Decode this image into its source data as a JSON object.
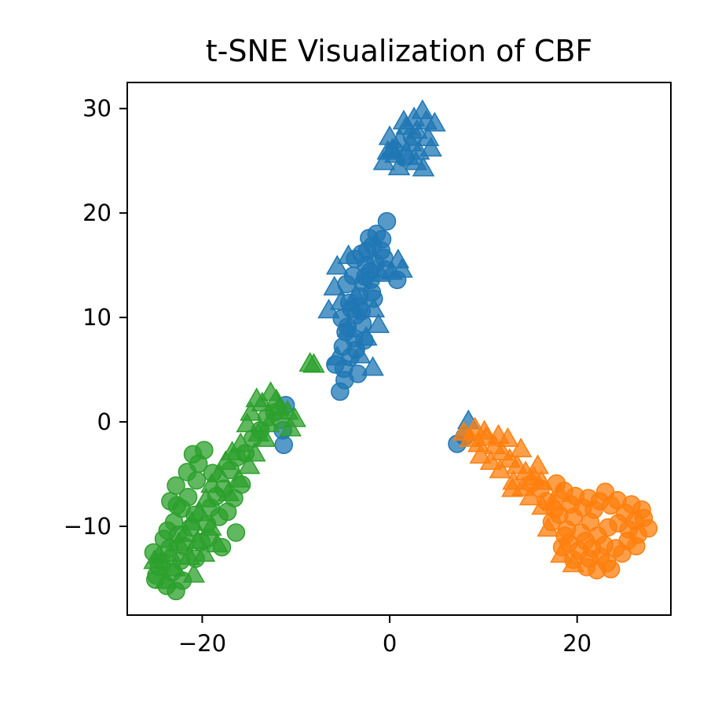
{
  "chart_data": {
    "type": "scatter",
    "title": "t-SNE Visualization of CBF",
    "xlabel": "",
    "ylabel": "",
    "xlim": [
      -28,
      30
    ],
    "ylim": [
      -18.5,
      32.5
    ],
    "xticks": [
      -20,
      0,
      20
    ],
    "yticks": [
      -10,
      0,
      10,
      20,
      30
    ],
    "xtick_labels": [
      "−20",
      "0",
      "20"
    ],
    "ytick_labels": [
      "−10",
      "0",
      "10",
      "20",
      "30"
    ],
    "grid": false,
    "legend": "none",
    "marker_alpha": 0.75,
    "series": [
      {
        "color": "#1f77b4",
        "markers": "circle",
        "points": [
          [
            -5.3,
            2.9
          ],
          [
            -4.8,
            4.0
          ],
          [
            -5.8,
            5.5
          ],
          [
            -4.2,
            6.2
          ],
          [
            -5.0,
            7.2
          ],
          [
            -3.8,
            8.0
          ],
          [
            -4.5,
            9.1
          ],
          [
            -3.6,
            10.2
          ],
          [
            -4.3,
            11.4
          ],
          [
            -3.2,
            12.0
          ],
          [
            -2.8,
            13.3
          ],
          [
            -3.9,
            14.0
          ],
          [
            -2.5,
            15.0
          ],
          [
            -3.0,
            16.1
          ],
          [
            -1.8,
            16.9
          ],
          [
            -2.2,
            17.6
          ],
          [
            -1.4,
            18.0
          ],
          [
            -0.3,
            19.2
          ],
          [
            -0.9,
            16.4
          ],
          [
            -1.5,
            15.2
          ],
          [
            -2.6,
            13.9
          ],
          [
            -0.5,
            14.6
          ],
          [
            0.8,
            13.6
          ],
          [
            -1.9,
            12.4
          ],
          [
            -3.3,
            11.1
          ],
          [
            -4.1,
            10.8
          ],
          [
            -2.9,
            9.4
          ],
          [
            -4.7,
            8.6
          ],
          [
            -3.6,
            6.9
          ],
          [
            -4.9,
            5.1
          ],
          [
            -3.4,
            4.6
          ],
          [
            -2.7,
            7.8
          ],
          [
            -1.7,
            11.8
          ],
          [
            -2.1,
            14.4
          ],
          [
            -0.8,
            17.5
          ],
          [
            -3.7,
            15.6
          ],
          [
            -2.4,
            16.4
          ],
          [
            -4.6,
            13.2
          ],
          [
            -3.0,
            10.6
          ],
          [
            -5.1,
            9.9
          ],
          [
            -2.0,
            13.6
          ],
          [
            -0.6,
            15.7
          ],
          [
            -11.1,
            1.6
          ],
          [
            -11.3,
            -2.2
          ],
          [
            -11.4,
            -0.8
          ],
          [
            7.2,
            -2.1
          ],
          [
            8.0,
            -1.4
          ],
          [
            0.5,
            26.0
          ],
          [
            1.6,
            25.3
          ],
          [
            2.4,
            27.3
          ]
        ]
      },
      {
        "color": "#1f77b4",
        "markers": "triangle",
        "points": [
          [
            -5.6,
            14.9
          ],
          [
            -5.9,
            12.9
          ],
          [
            -6.5,
            10.7
          ],
          [
            -5.2,
            11.5
          ],
          [
            -4.4,
            15.9
          ],
          [
            -1.0,
            14.2
          ],
          [
            0.2,
            14.4
          ],
          [
            1.3,
            14.6
          ],
          [
            -1.7,
            10.8
          ],
          [
            -1.2,
            9.3
          ],
          [
            -2.5,
            8.1
          ],
          [
            -5.6,
            6.2
          ],
          [
            -3.2,
            6.4
          ],
          [
            -1.8,
            5.2
          ],
          [
            -4.4,
            8.9
          ],
          [
            -3.6,
            12.1
          ],
          [
            0.9,
            15.5
          ],
          [
            -0.6,
            24.9
          ],
          [
            0.3,
            26.1
          ],
          [
            1.1,
            27.0
          ],
          [
            1.8,
            28.3
          ],
          [
            2.6,
            29.1
          ],
          [
            3.5,
            29.8
          ],
          [
            2.9,
            27.9
          ],
          [
            3.9,
            28.8
          ],
          [
            4.4,
            26.2
          ],
          [
            3.6,
            24.3
          ],
          [
            2.0,
            25.4
          ],
          [
            1.0,
            24.4
          ],
          [
            0.6,
            25.6
          ],
          [
            2.3,
            26.7
          ],
          [
            4.1,
            27.2
          ],
          [
            3.1,
            25.9
          ],
          [
            1.5,
            28.8
          ],
          [
            0.0,
            27.3
          ],
          [
            4.8,
            28.6
          ],
          [
            2.8,
            24.9
          ],
          [
            -0.2,
            25.9
          ],
          [
            8.4,
            0.1
          ]
        ]
      },
      {
        "color": "#ff7f0e",
        "markers": "circle",
        "points": [
          [
            17.8,
            -5.9
          ],
          [
            18.6,
            -6.6
          ],
          [
            19.8,
            -7.1
          ],
          [
            21.2,
            -7.3
          ],
          [
            22.4,
            -7.6
          ],
          [
            23.6,
            -8.0
          ],
          [
            24.3,
            -7.5
          ],
          [
            25.1,
            -8.7
          ],
          [
            26.2,
            -9.5
          ],
          [
            27.1,
            -9.2
          ],
          [
            27.6,
            -10.2
          ],
          [
            26.5,
            -10.8
          ],
          [
            25.4,
            -11.4
          ],
          [
            24.1,
            -12.1
          ],
          [
            23.2,
            -13.5
          ],
          [
            23.6,
            -14.1
          ],
          [
            22.5,
            -12.9
          ],
          [
            21.3,
            -13.1
          ],
          [
            20.2,
            -12.3
          ],
          [
            19.1,
            -11.6
          ],
          [
            18.4,
            -12.0
          ],
          [
            18.9,
            -10.3
          ],
          [
            19.6,
            -9.1
          ],
          [
            20.4,
            -10.6
          ],
          [
            21.4,
            -9.6
          ],
          [
            22.2,
            -10.9
          ],
          [
            23.3,
            -10.1
          ],
          [
            24.4,
            -9.7
          ],
          [
            25.5,
            -10.3
          ],
          [
            26.3,
            -11.9
          ],
          [
            24.8,
            -12.6
          ],
          [
            22.9,
            -11.8
          ],
          [
            21.8,
            -8.4
          ],
          [
            20.6,
            -8.2
          ],
          [
            19.3,
            -7.9
          ],
          [
            18.1,
            -8.9
          ],
          [
            17.3,
            -9.6
          ],
          [
            18.7,
            -10.9
          ],
          [
            20.9,
            -11.4
          ],
          [
            22.1,
            -14.2
          ],
          [
            21.0,
            -13.9
          ],
          [
            19.6,
            -13.2
          ],
          [
            23.0,
            -6.7
          ],
          [
            25.8,
            -7.9
          ],
          [
            16.1,
            -6.4
          ],
          [
            15.1,
            -5.9
          ],
          [
            16.7,
            -7.6
          ],
          [
            17.6,
            -8.4
          ],
          [
            26.9,
            -8.4
          ],
          [
            21.6,
            -12.1
          ]
        ]
      },
      {
        "color": "#ff7f0e",
        "markers": "triangle",
        "points": [
          [
            7.9,
            -1.0
          ],
          [
            8.6,
            -1.6
          ],
          [
            9.5,
            -2.1
          ],
          [
            10.3,
            -1.5
          ],
          [
            11.2,
            -2.3
          ],
          [
            12.0,
            -2.9
          ],
          [
            12.8,
            -3.6
          ],
          [
            13.6,
            -4.2
          ],
          [
            14.5,
            -4.8
          ],
          [
            15.4,
            -5.3
          ],
          [
            16.2,
            -5.7
          ],
          [
            11.8,
            -4.6
          ],
          [
            10.8,
            -3.8
          ],
          [
            9.7,
            -3.2
          ],
          [
            13.2,
            -5.7
          ],
          [
            14.2,
            -6.3
          ],
          [
            15.0,
            -7.2
          ],
          [
            16.3,
            -8.1
          ],
          [
            17.4,
            -7.7
          ],
          [
            18.2,
            -6.9
          ],
          [
            12.6,
            -1.6
          ],
          [
            14.0,
            -2.6
          ],
          [
            10.1,
            -0.9
          ],
          [
            11.6,
            -1.3
          ],
          [
            15.8,
            -4.2
          ],
          [
            9.1,
            -0.6
          ],
          [
            13.1,
            -6.4
          ],
          [
            16.9,
            -10.2
          ],
          [
            18.3,
            -12.7
          ],
          [
            19.6,
            -13.6
          ]
        ]
      },
      {
        "color": "#2ca02c",
        "markers": "circle",
        "points": [
          [
            -25.2,
            -12.5
          ],
          [
            -24.6,
            -13.9
          ],
          [
            -25.0,
            -15.1
          ],
          [
            -23.8,
            -15.7
          ],
          [
            -23.2,
            -14.4
          ],
          [
            -22.8,
            -16.2
          ],
          [
            -22.3,
            -13.3
          ],
          [
            -23.5,
            -12.1
          ],
          [
            -24.1,
            -11.2
          ],
          [
            -22.6,
            -10.8
          ],
          [
            -23.0,
            -9.6
          ],
          [
            -22.2,
            -8.3
          ],
          [
            -23.4,
            -7.6
          ],
          [
            -22.8,
            -6.1
          ],
          [
            -21.5,
            -7.2
          ],
          [
            -20.8,
            -8.9
          ],
          [
            -21.2,
            -10.1
          ],
          [
            -20.1,
            -11.5
          ],
          [
            -19.5,
            -9.8
          ],
          [
            -19.1,
            -8.2
          ],
          [
            -18.5,
            -7.1
          ],
          [
            -17.7,
            -6.4
          ],
          [
            -17.0,
            -4.6
          ],
          [
            -16.3,
            -3.4
          ],
          [
            -15.4,
            -3.0
          ],
          [
            -14.6,
            -1.6
          ],
          [
            -13.8,
            -0.8
          ],
          [
            -13.1,
            0.4
          ],
          [
            -12.3,
            0.9
          ],
          [
            -11.7,
            0.2
          ],
          [
            -21.0,
            -3.1
          ],
          [
            -20.4,
            -4.0
          ],
          [
            -19.8,
            -2.7
          ],
          [
            -18.9,
            -4.9
          ],
          [
            -20.6,
            -5.6
          ],
          [
            -21.6,
            -4.8
          ],
          [
            -22.7,
            -8.0
          ],
          [
            -24.3,
            -13.4
          ],
          [
            -23.7,
            -10.4
          ],
          [
            -21.9,
            -11.9
          ],
          [
            -20.7,
            -13.1
          ],
          [
            -18.2,
            -9.1
          ],
          [
            -17.3,
            -8.6
          ],
          [
            -16.6,
            -7.3
          ],
          [
            -15.8,
            -6.0
          ],
          [
            -16.4,
            -10.6
          ],
          [
            -17.9,
            -12.0
          ],
          [
            -19.3,
            -11.1
          ],
          [
            -22.1,
            -15.2
          ],
          [
            -24.9,
            -14.7
          ]
        ]
      },
      {
        "color": "#2ca02c",
        "markers": "triangle",
        "points": [
          [
            -8.5,
            5.6
          ],
          [
            -8.1,
            5.5
          ],
          [
            -10.1,
            0.3
          ],
          [
            -10.9,
            1.0
          ],
          [
            -12.1,
            2.1
          ],
          [
            -12.7,
            2.8
          ],
          [
            -13.6,
            1.8
          ],
          [
            -14.2,
            2.2
          ],
          [
            -14.8,
            0.9
          ],
          [
            -15.2,
            -0.2
          ],
          [
            -14.0,
            -1.1
          ],
          [
            -12.9,
            -0.2
          ],
          [
            -11.8,
            1.4
          ],
          [
            -10.6,
            -0.6
          ],
          [
            -15.9,
            -2.1
          ],
          [
            -16.8,
            -2.9
          ],
          [
            -17.5,
            -3.8
          ],
          [
            -18.2,
            -5.0
          ],
          [
            -19.0,
            -6.0
          ],
          [
            -19.6,
            -7.4
          ],
          [
            -20.3,
            -8.7
          ],
          [
            -21.1,
            -9.6
          ],
          [
            -21.8,
            -10.7
          ],
          [
            -22.5,
            -11.6
          ],
          [
            -23.4,
            -12.6
          ],
          [
            -24.6,
            -12.8
          ],
          [
            -20.5,
            -11.4
          ],
          [
            -19.1,
            -10.1
          ],
          [
            -18.4,
            -11.7
          ],
          [
            -21.4,
            -12.9
          ],
          [
            -22.9,
            -14.0
          ],
          [
            -15.0,
            -4.2
          ],
          [
            -16.1,
            -5.5
          ],
          [
            -17.2,
            -6.8
          ],
          [
            -14.4,
            -3.0
          ],
          [
            -13.3,
            -1.6
          ],
          [
            -19.8,
            -12.6
          ],
          [
            -20.9,
            -14.6
          ],
          [
            -23.9,
            -15.2
          ],
          [
            -25.1,
            -13.3
          ]
        ]
      }
    ]
  }
}
